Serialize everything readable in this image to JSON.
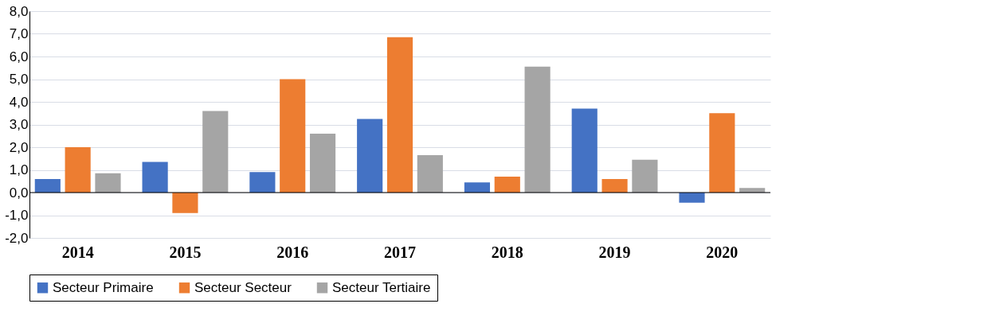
{
  "chart_data": {
    "type": "bar",
    "categories": [
      "2014",
      "2015",
      "2016",
      "2017",
      "2018",
      "2019",
      "2020"
    ],
    "series": [
      {
        "name": "Secteur Primaire",
        "color": "#4472c4",
        "values": [
          0.6,
          1.35,
          0.9,
          3.25,
          0.45,
          3.7,
          -0.45
        ]
      },
      {
        "name": "Secteur Secteur",
        "color": "#ed7d31",
        "values": [
          2.0,
          -0.9,
          5.0,
          6.85,
          0.7,
          0.6,
          3.5
        ]
      },
      {
        "name": "Secteur Tertiaire",
        "color": "#a5a5a5",
        "values": [
          0.85,
          3.6,
          2.6,
          1.65,
          5.55,
          1.45,
          0.2
        ]
      }
    ],
    "ylim": [
      -2,
      8
    ],
    "yticks": [
      {
        "value": -2,
        "label": "-2,0"
      },
      {
        "value": -1,
        "label": "-1,0"
      },
      {
        "value": 0,
        "label": "0,0"
      },
      {
        "value": 1,
        "label": "1,0"
      },
      {
        "value": 2,
        "label": "2,0"
      },
      {
        "value": 3,
        "label": "3,0"
      },
      {
        "value": 4,
        "label": "4,0"
      },
      {
        "value": 5,
        "label": "5,0"
      },
      {
        "value": 6,
        "label": "6,0"
      },
      {
        "value": 7,
        "label": "7,0"
      },
      {
        "value": 8,
        "label": "8,0"
      }
    ],
    "grid": "y",
    "legend": "bottom"
  }
}
